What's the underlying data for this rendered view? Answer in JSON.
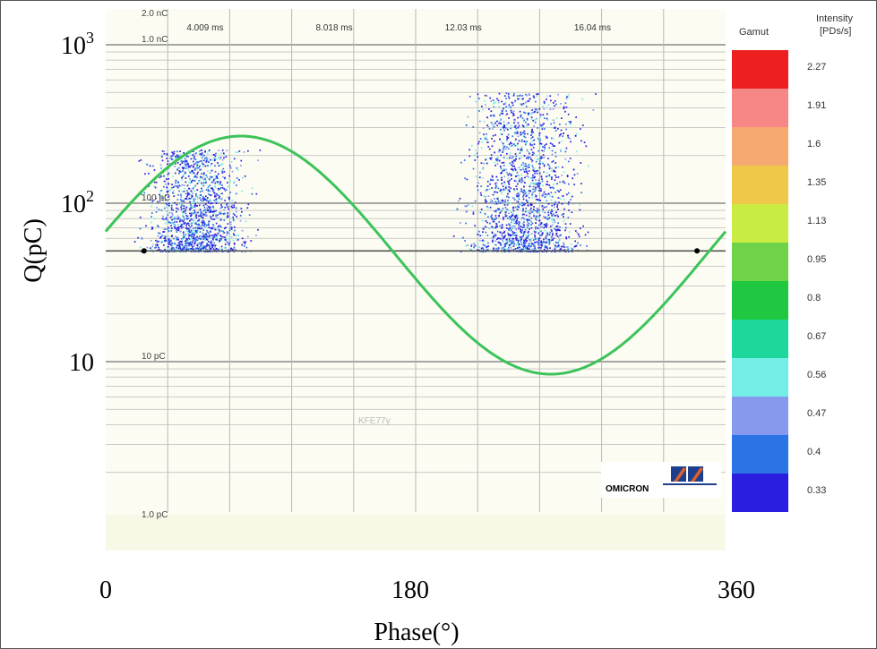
{
  "chart_data": {
    "type": "scatter",
    "ylabel": "Q(pC)",
    "xlabel": "Phase(°)",
    "x_ticks": [
      "0",
      "180",
      "360"
    ],
    "xlim": [
      0,
      360
    ],
    "y_scale": "log",
    "ylim": [
      1,
      2000
    ],
    "y_ticks": [
      {
        "value": 1000,
        "base": "10",
        "exp": "3"
      },
      {
        "value": 100,
        "base": "10",
        "exp": "2"
      },
      {
        "value": 10,
        "base": "10",
        "exp": ""
      }
    ],
    "inner_y_labels": [
      {
        "value": 2000,
        "text": "2.0 nC"
      },
      {
        "value": 1000,
        "text": "1.0 nC"
      },
      {
        "value": 100,
        "text": "100 pC"
      },
      {
        "value": 10,
        "text": "10 pC"
      },
      {
        "value": 1,
        "text": "1.0 pC"
      }
    ],
    "time_labels": [
      {
        "phase": 60,
        "text": "4.009 ms"
      },
      {
        "phase": 135,
        "text": "8.018 ms"
      },
      {
        "phase": 210,
        "text": "12.03 ms"
      },
      {
        "phase": 285,
        "text": "16.04 ms"
      }
    ],
    "threshold_pc": 50,
    "threshold_markers_phase": [
      15,
      359
    ],
    "reference_sine": {
      "color": "#3cc35a",
      "description": "phase reference"
    },
    "clusters": [
      {
        "phase_range": [
          15,
          90
        ],
        "charge_range_pc": [
          50,
          220
        ]
      },
      {
        "phase_range": [
          200,
          285
        ],
        "charge_range_pc": [
          50,
          500
        ]
      }
    ],
    "grid": true,
    "watermark_text": "KFE77y",
    "logo_text": "OMICRON",
    "legend": {
      "placement": "right",
      "title": "Gamut",
      "unit_title_line1": "Intensity",
      "unit_title_line2": "[PDs/s]",
      "entries": [
        {
          "value": "2.27",
          "color": "#ee1f1f"
        },
        {
          "value": "1.91",
          "color": "#f78686"
        },
        {
          "value": "1.6",
          "color": "#f7a972"
        },
        {
          "value": "1.35",
          "color": "#efc84a"
        },
        {
          "value": "1.13",
          "color": "#c9ec43"
        },
        {
          "value": "0.95",
          "color": "#6fd34a"
        },
        {
          "value": "0.8",
          "color": "#1fc840"
        },
        {
          "value": "0.67",
          "color": "#1ed79d"
        },
        {
          "value": "0.56",
          "color": "#73eee6"
        },
        {
          "value": "0.47",
          "color": "#8799ee"
        },
        {
          "value": "0.4",
          "color": "#2a74e6"
        },
        {
          "value": "0.33",
          "color": "#2a1ee0"
        }
      ]
    }
  }
}
